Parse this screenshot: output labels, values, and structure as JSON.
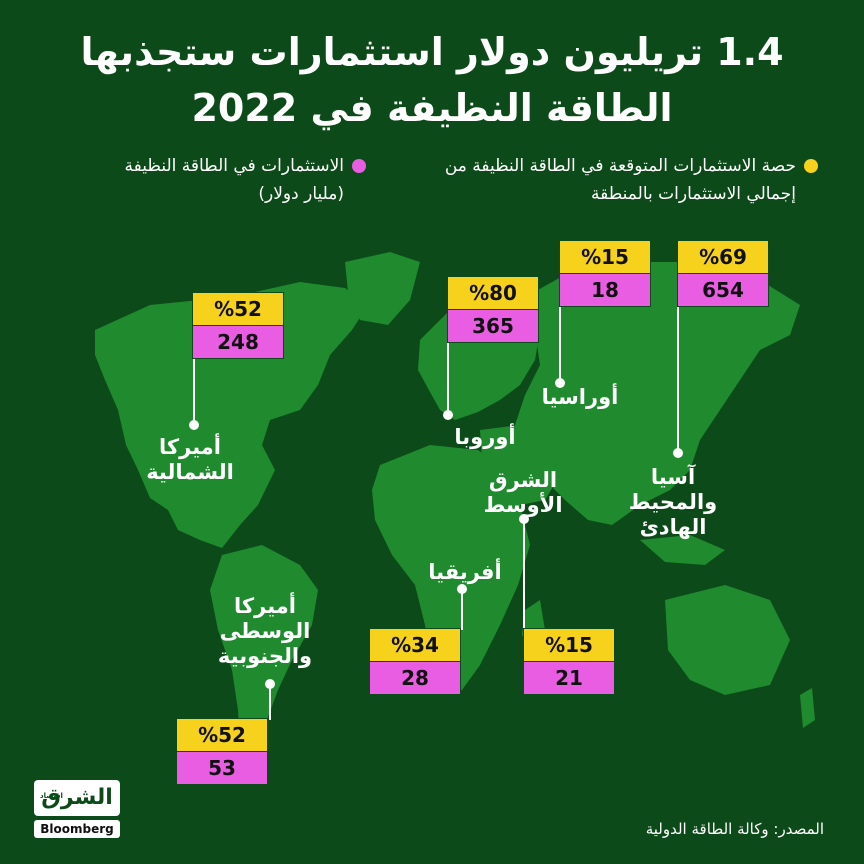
{
  "title": "1.4 تريليون دولار استثمارات ستجذبها الطاقة النظيفة في 2022",
  "legend": {
    "share": "حصة الاستثمارات المتوقعة في الطاقة النظيفة من إجمالي الاستثمارات بالمنطقة",
    "investment": "الاستثمارات في الطاقة النظيفة (مليار دولار)"
  },
  "colors": {
    "background": "#0d4a1a",
    "land": "#1f8a2e",
    "share": "#f6d21c",
    "investment": "#e95de3"
  },
  "regions": {
    "north_america": {
      "label": "أميركا الشمالية",
      "share": "%52",
      "investment": "248"
    },
    "europe": {
      "label": "أوروبا",
      "share": "%80",
      "investment": "365"
    },
    "eurasia": {
      "label": "أوراسيا",
      "share": "%15",
      "investment": "18"
    },
    "asia_pacific": {
      "label": "آسيا والمحيط الهادئ",
      "share": "%69",
      "investment": "654"
    },
    "middle_east": {
      "label": "الشرق الأوسط",
      "share": "%15",
      "investment": "21"
    },
    "africa": {
      "label": "أفريقيا",
      "share": "%34",
      "investment": "28"
    },
    "latin_america": {
      "label": "أميركا الوسطى والجنوبية",
      "share": "%52",
      "investment": "53"
    }
  },
  "source": "المصدر: وكالة الطاقة الدولية",
  "logo": {
    "main": "الشرق",
    "sub": "اقتصاد",
    "brand": "Bloomberg"
  }
}
